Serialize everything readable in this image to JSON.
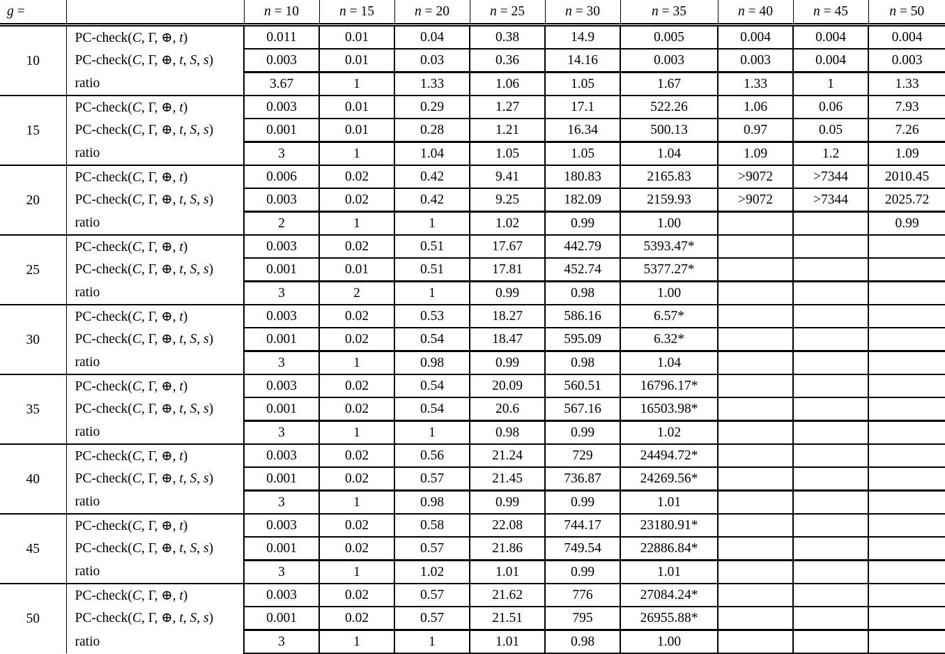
{
  "table": {
    "corner_label": "<i>g</i> =",
    "col_headers": [
      "<i>n</i> = 10",
      "<i>n</i> = 15",
      "<i>n</i> = 20",
      "<i>n</i> = 25",
      "<i>n</i> = 30",
      "<i>n</i> = 35",
      "<i>n</i> = 40",
      "<i>n</i> = 45",
      "<i>n</i> = 50"
    ],
    "row_order": [
      "pc_check_t",
      "pc_check_t_s",
      "ratio"
    ],
    "row_labels": {
      "pc_check_t": "PC-check(<i>C</i>, Γ, ⊕, <i>t</i>)",
      "pc_check_t_s": "PC-check(<i>C</i>, Γ, ⊕, <i>t</i>, <i>S</i>, <i>s</i>)",
      "ratio": "ratio"
    },
    "groups": [
      {
        "g": "10",
        "pc_check_t": [
          "0.011",
          "0.01",
          "0.04",
          "0.38",
          "14.9",
          "0.005",
          "0.004",
          "0.004",
          "0.004"
        ],
        "pc_check_t_s": [
          "0.003",
          "0.01",
          "0.03",
          "0.36",
          "14.16",
          "0.003",
          "0.003",
          "0.004",
          "0.003"
        ],
        "ratio": [
          "3.67",
          "1",
          "1.33",
          "1.06",
          "1.05",
          "1.67",
          "1.33",
          "1",
          "1.33"
        ]
      },
      {
        "g": "15",
        "pc_check_t": [
          "0.003",
          "0.01",
          "0.29",
          "1.27",
          "17.1",
          "522.26",
          "1.06",
          "0.06",
          "7.93"
        ],
        "pc_check_t_s": [
          "0.001",
          "0.01",
          "0.28",
          "1.21",
          "16.34",
          "500.13",
          "0.97",
          "0.05",
          "7.26"
        ],
        "ratio": [
          "3",
          "1",
          "1.04",
          "1.05",
          "1.05",
          "1.04",
          "1.09",
          "1.2",
          "1.09"
        ]
      },
      {
        "g": "20",
        "pc_check_t": [
          "0.006",
          "0.02",
          "0.42",
          "9.41",
          "180.83",
          "2165.83",
          ">9072",
          ">7344",
          "2010.45"
        ],
        "pc_check_t_s": [
          "0.003",
          "0.02",
          "0.42",
          "9.25",
          "182.09",
          "2159.93",
          ">9072",
          ">7344",
          "2025.72"
        ],
        "ratio": [
          "2",
          "1",
          "1",
          "1.02",
          "0.99",
          "1.00",
          "",
          "",
          "0.99"
        ]
      },
      {
        "g": "25",
        "pc_check_t": [
          "0.003",
          "0.02",
          "0.51",
          "17.67",
          "442.79",
          "5393.47*",
          "",
          "",
          ""
        ],
        "pc_check_t_s": [
          "0.001",
          "0.01",
          "0.51",
          "17.81",
          "452.74",
          "5377.27*",
          "",
          "",
          ""
        ],
        "ratio": [
          "3",
          "2",
          "1",
          "0.99",
          "0.98",
          "1.00",
          "",
          "",
          ""
        ]
      },
      {
        "g": "30",
        "pc_check_t": [
          "0.003",
          "0.02",
          "0.53",
          "18.27",
          "586.16",
          "6.57*",
          "",
          "",
          ""
        ],
        "pc_check_t_s": [
          "0.001",
          "0.02",
          "0.54",
          "18.47",
          "595.09",
          "6.32*",
          "",
          "",
          ""
        ],
        "ratio": [
          "3",
          "1",
          "0.98",
          "0.99",
          "0.98",
          "1.04",
          "",
          "",
          ""
        ]
      },
      {
        "g": "35",
        "pc_check_t": [
          "0.003",
          "0.02",
          "0.54",
          "20.09",
          "560.51",
          "16796.17*",
          "",
          "",
          ""
        ],
        "pc_check_t_s": [
          "0.001",
          "0.02",
          "0.54",
          "20.6",
          "567.16",
          "16503.98*",
          "",
          "",
          ""
        ],
        "ratio": [
          "3",
          "1",
          "1",
          "0.98",
          "0.99",
          "1.02",
          "",
          "",
          ""
        ]
      },
      {
        "g": "40",
        "pc_check_t": [
          "0.003",
          "0.02",
          "0.56",
          "21.24",
          "729",
          "24494.72*",
          "",
          "",
          ""
        ],
        "pc_check_t_s": [
          "0.001",
          "0.02",
          "0.57",
          "21.45",
          "736.87",
          "24269.56*",
          "",
          "",
          ""
        ],
        "ratio": [
          "3",
          "1",
          "0.98",
          "0.99",
          "0.99",
          "1.01",
          "",
          "",
          ""
        ]
      },
      {
        "g": "45",
        "pc_check_t": [
          "0.003",
          "0.02",
          "0.58",
          "22.08",
          "744.17",
          "23180.91*",
          "",
          "",
          ""
        ],
        "pc_check_t_s": [
          "0.001",
          "0.02",
          "0.57",
          "21.86",
          "749.54",
          "22886.84*",
          "",
          "",
          ""
        ],
        "ratio": [
          "3",
          "1",
          "1.02",
          "1.01",
          "0.99",
          "1.01",
          "",
          "",
          ""
        ]
      },
      {
        "g": "50",
        "pc_check_t": [
          "0.003",
          "0.02",
          "0.57",
          "21.62",
          "776",
          "27084.24*",
          "",
          "",
          ""
        ],
        "pc_check_t_s": [
          "0.001",
          "0.02",
          "0.57",
          "21.51",
          "795",
          "26955.88*",
          "",
          "",
          ""
        ],
        "ratio": [
          "3",
          "1",
          "1",
          "1.01",
          "0.98",
          "1.00",
          "",
          "",
          ""
        ]
      }
    ]
  }
}
